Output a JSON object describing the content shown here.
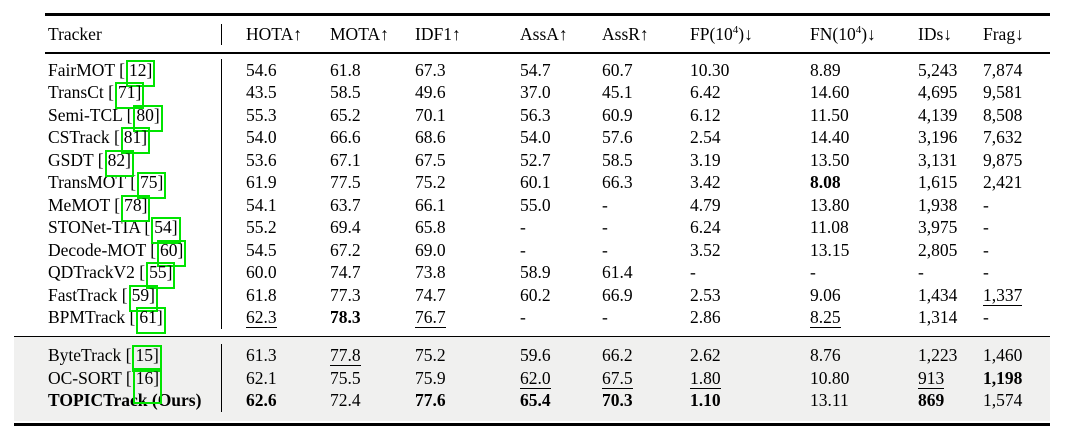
{
  "colors": {
    "citation_box": "#00e400",
    "shaded_row_bg": "#f0f0ef",
    "rule": "#000000",
    "page_bg": "#ffffff"
  },
  "table": {
    "columns": [
      {
        "text": "Tracker"
      },
      {
        "text": "HOTA↑"
      },
      {
        "text": "MOTA↑"
      },
      {
        "text": "IDF1↑"
      },
      {
        "text": "AssA↑"
      },
      {
        "text": "AssR↑"
      },
      {
        "text": "FP(10",
        "sup": "4",
        "tail": ")↓"
      },
      {
        "text": "FN(10",
        "sup": "4",
        "tail": ")↓"
      },
      {
        "text": "IDs↓"
      },
      {
        "text": "Frag↓"
      }
    ],
    "sections": [
      {
        "shaded": false,
        "rows": [
          {
            "name": "FairMOT",
            "cite": "12",
            "cells": [
              {
                "t": "54.6"
              },
              {
                "t": "61.8"
              },
              {
                "t": "67.3"
              },
              {
                "t": "54.7"
              },
              {
                "t": "60.7"
              },
              {
                "t": "10.30"
              },
              {
                "t": "8.89"
              },
              {
                "t": "5,243"
              },
              {
                "t": "7,874"
              }
            ]
          },
          {
            "name": "TransCt",
            "cite": "71",
            "cells": [
              {
                "t": "43.5"
              },
              {
                "t": "58.5"
              },
              {
                "t": "49.6"
              },
              {
                "t": "37.0"
              },
              {
                "t": "45.1"
              },
              {
                "t": "6.42"
              },
              {
                "t": "14.60"
              },
              {
                "t": "4,695"
              },
              {
                "t": "9,581"
              }
            ]
          },
          {
            "name": "Semi-TCL",
            "cite": "80",
            "cells": [
              {
                "t": "55.3"
              },
              {
                "t": "65.2"
              },
              {
                "t": "70.1"
              },
              {
                "t": "56.3"
              },
              {
                "t": "60.9"
              },
              {
                "t": "6.12"
              },
              {
                "t": "11.50"
              },
              {
                "t": "4,139"
              },
              {
                "t": "8,508"
              }
            ]
          },
          {
            "name": "CSTrack",
            "cite": "81",
            "cells": [
              {
                "t": "54.0"
              },
              {
                "t": "66.6"
              },
              {
                "t": "68.6"
              },
              {
                "t": "54.0"
              },
              {
                "t": "57.6"
              },
              {
                "t": "2.54"
              },
              {
                "t": "14.40"
              },
              {
                "t": "3,196"
              },
              {
                "t": "7,632"
              }
            ]
          },
          {
            "name": "GSDT",
            "cite": "82",
            "cells": [
              {
                "t": "53.6"
              },
              {
                "t": "67.1"
              },
              {
                "t": "67.5"
              },
              {
                "t": "52.7"
              },
              {
                "t": "58.5"
              },
              {
                "t": "3.19"
              },
              {
                "t": "13.50"
              },
              {
                "t": "3,131"
              },
              {
                "t": "9,875"
              }
            ]
          },
          {
            "name": "TransMOT",
            "cite": "75",
            "cells": [
              {
                "t": "61.9"
              },
              {
                "t": "77.5"
              },
              {
                "t": "75.2"
              },
              {
                "t": "60.1"
              },
              {
                "t": "66.3"
              },
              {
                "t": "3.42"
              },
              {
                "t": "8.08",
                "s": "b"
              },
              {
                "t": "1,615"
              },
              {
                "t": "2,421"
              }
            ]
          },
          {
            "name": "MeMOT",
            "cite": "78",
            "cells": [
              {
                "t": "54.1"
              },
              {
                "t": "63.7"
              },
              {
                "t": "66.1"
              },
              {
                "t": "55.0"
              },
              {
                "t": "-"
              },
              {
                "t": "4.79"
              },
              {
                "t": "13.80"
              },
              {
                "t": "1,938"
              },
              {
                "t": "-"
              }
            ]
          },
          {
            "name": "STONet-TIA",
            "cite": "54",
            "cells": [
              {
                "t": "55.2"
              },
              {
                "t": "69.4"
              },
              {
                "t": "65.8"
              },
              {
                "t": "-"
              },
              {
                "t": "-"
              },
              {
                "t": "6.24"
              },
              {
                "t": "11.08"
              },
              {
                "t": "3,975"
              },
              {
                "t": "-"
              }
            ]
          },
          {
            "name": "Decode-MOT",
            "cite": "60",
            "cells": [
              {
                "t": "54.5"
              },
              {
                "t": "67.2"
              },
              {
                "t": "69.0"
              },
              {
                "t": "-"
              },
              {
                "t": "-"
              },
              {
                "t": "3.52"
              },
              {
                "t": "13.15"
              },
              {
                "t": "2,805"
              },
              {
                "t": "-"
              }
            ]
          },
          {
            "name": "QDTrackV2",
            "cite": "55",
            "cells": [
              {
                "t": "60.0"
              },
              {
                "t": "74.7"
              },
              {
                "t": "73.8"
              },
              {
                "t": "58.9"
              },
              {
                "t": "61.4"
              },
              {
                "t": "-"
              },
              {
                "t": "-"
              },
              {
                "t": "-"
              },
              {
                "t": "-"
              }
            ]
          },
          {
            "name": "FastTrack",
            "cite": "59",
            "cells": [
              {
                "t": "61.8"
              },
              {
                "t": "77.3"
              },
              {
                "t": "74.7"
              },
              {
                "t": "60.2"
              },
              {
                "t": "66.9"
              },
              {
                "t": "2.53"
              },
              {
                "t": "9.06"
              },
              {
                "t": "1,434"
              },
              {
                "t": "1,337",
                "s": "u"
              }
            ]
          },
          {
            "name": "BPMTrack",
            "cite": "61",
            "cells": [
              {
                "t": "62.3",
                "s": "u"
              },
              {
                "t": "78.3",
                "s": "b"
              },
              {
                "t": "76.7",
                "s": "u"
              },
              {
                "t": "-"
              },
              {
                "t": "-"
              },
              {
                "t": "2.86"
              },
              {
                "t": "8.25",
                "s": "u"
              },
              {
                "t": "1,314"
              },
              {
                "t": "-"
              }
            ]
          }
        ]
      },
      {
        "shaded": true,
        "rows": [
          {
            "name": "ByteTrack",
            "cite": "15",
            "cells": [
              {
                "t": "61.3"
              },
              {
                "t": "77.8",
                "s": "u"
              },
              {
                "t": "75.2"
              },
              {
                "t": "59.6"
              },
              {
                "t": "66.2"
              },
              {
                "t": "2.62"
              },
              {
                "t": "8.76"
              },
              {
                "t": "1,223"
              },
              {
                "t": "1,460"
              }
            ]
          },
          {
            "name": "OC-SORT",
            "cite": "16",
            "tall_box": true,
            "cells": [
              {
                "t": "62.1"
              },
              {
                "t": "75.5"
              },
              {
                "t": "75.9"
              },
              {
                "t": "62.0",
                "s": "u"
              },
              {
                "t": "67.5",
                "s": "u"
              },
              {
                "t": "1.80",
                "s": "u"
              },
              {
                "t": "10.80"
              },
              {
                "t": "913",
                "s": "u"
              },
              {
                "t": "1,198",
                "s": "b"
              }
            ]
          },
          {
            "name": "TOPICTrack (Ours)",
            "bold": true,
            "cite": null,
            "cells": [
              {
                "t": "62.6",
                "s": "b"
              },
              {
                "t": "72.4"
              },
              {
                "t": "77.6",
                "s": "b"
              },
              {
                "t": "65.4",
                "s": "b"
              },
              {
                "t": "70.3",
                "s": "b"
              },
              {
                "t": "1.10",
                "s": "b"
              },
              {
                "t": "13.11"
              },
              {
                "t": "869",
                "s": "b"
              },
              {
                "t": "1,574"
              }
            ]
          }
        ]
      }
    ]
  }
}
